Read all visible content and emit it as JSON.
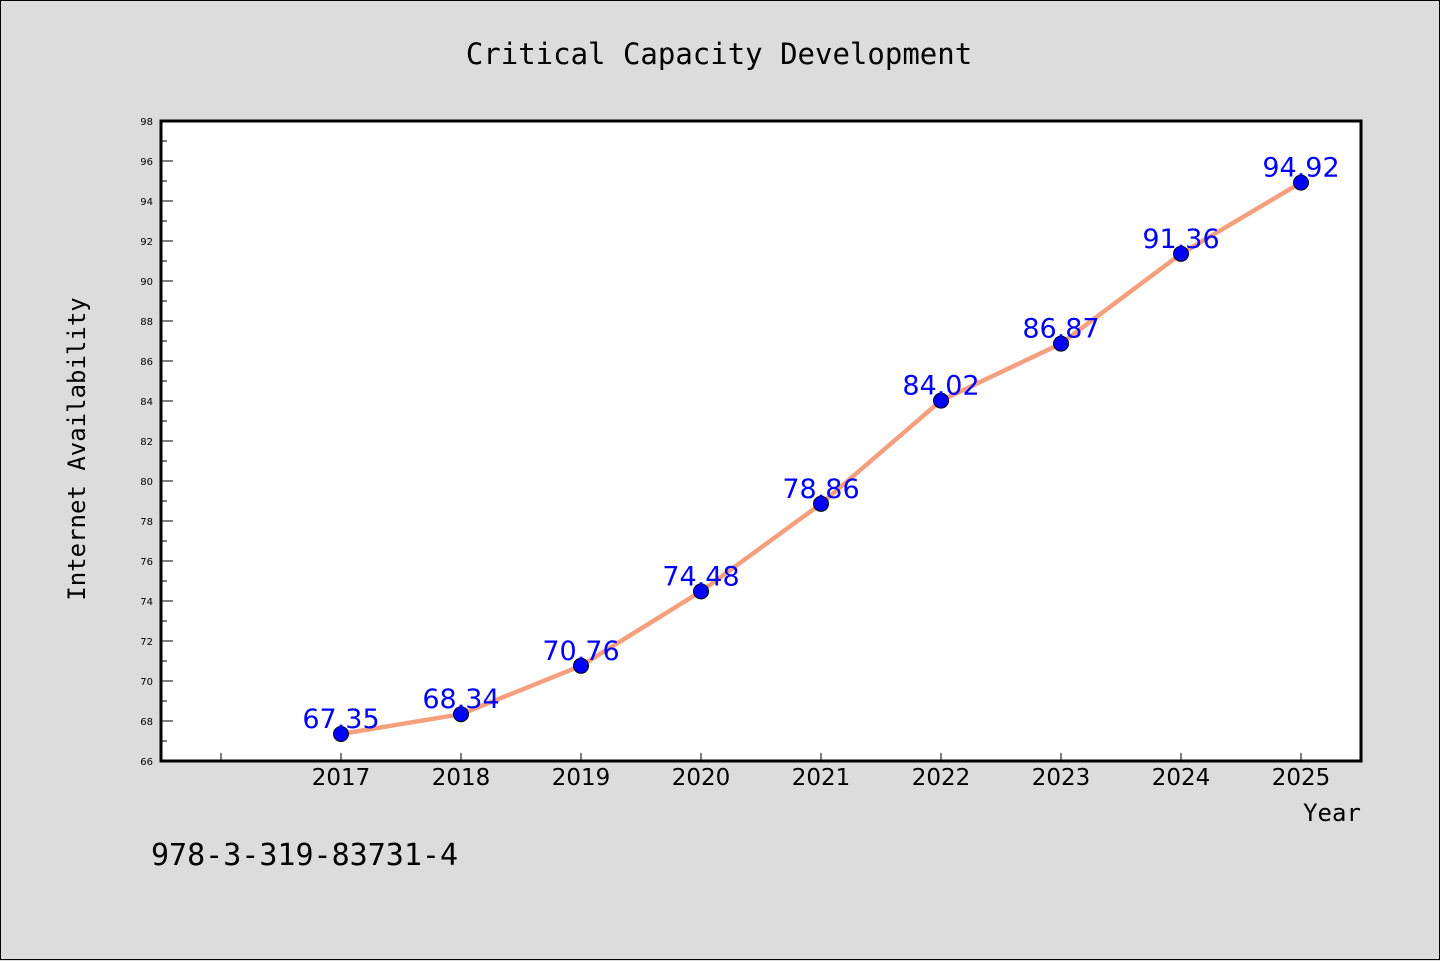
{
  "chart_data": {
    "type": "line",
    "title": "Critical Capacity Development",
    "xlabel": "Year",
    "ylabel": "Internet Availability",
    "categories": [
      "2017",
      "2018",
      "2019",
      "2020",
      "2021",
      "2022",
      "2023",
      "2024",
      "2025"
    ],
    "series": [
      {
        "values": [
          67.35,
          68.34,
          70.76,
          74.48,
          78.86,
          84.02,
          86.87,
          91.36,
          94.92
        ],
        "data_labels": [
          "67.35",
          "68.34",
          "70.76",
          "74.48",
          "78.86",
          "84.02",
          "86.87",
          "91.36",
          "94.92"
        ],
        "line_color": "#f4a07e",
        "marker_color": "#0000ff"
      }
    ],
    "ylim": [
      66,
      98
    ],
    "yticks": [
      66,
      68,
      70,
      72,
      74,
      76,
      78,
      80,
      82,
      84,
      86,
      88,
      90,
      92,
      94,
      96,
      98
    ],
    "grid": false,
    "legend": "none"
  },
  "footnote": "978-3-319-83731-4",
  "colors": {
    "background": "#dcdcdc",
    "plot_area": "#ffffff",
    "data_label": "#0000ff"
  }
}
